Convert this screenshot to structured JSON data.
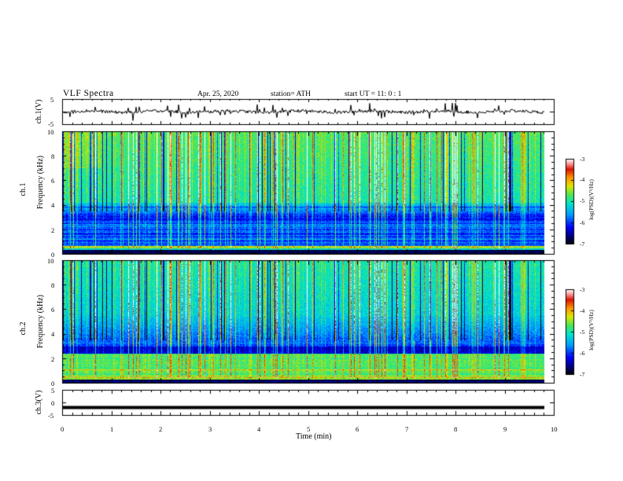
{
  "header": {
    "title": "VLF Spectra",
    "date": "Apr. 25, 2020",
    "station": "station= ATH",
    "start": "start UT =  11: 0 : 1"
  },
  "chart_data": [
    {
      "type": "line",
      "id": "ch1",
      "ylabel": "ch.1(V)",
      "ylim": [
        -5,
        5
      ],
      "yticks": [
        "5",
        "-5"
      ],
      "trace_level": 0,
      "trace_noise": 1.2
    },
    {
      "type": "heatmap",
      "id": "spec1",
      "ylabel_line1": "ch.1",
      "ylabel_line2": "Frequency (kHz)",
      "ylim": [
        0,
        10
      ],
      "yticks": [
        "0",
        "2",
        "4",
        "6",
        "8",
        "10"
      ],
      "colorbar_label": "log(PSD)(V²/Hz)",
      "colorbar_ticks": [
        "-3",
        "-4",
        "-5",
        "-6",
        "-7"
      ],
      "colorbar_range": [
        -7,
        -3
      ]
    },
    {
      "type": "heatmap",
      "id": "spec2",
      "ylabel_line1": "ch.2",
      "ylabel_line2": "Frequency (kHz)",
      "ylim": [
        0,
        10
      ],
      "yticks": [
        "0",
        "2",
        "4",
        "6",
        "8",
        "10"
      ],
      "colorbar_label": "log(PSD)(V²/Hz)",
      "colorbar_ticks": [
        "-3",
        "-4",
        "-5",
        "-6",
        "-7"
      ],
      "colorbar_range": [
        -7,
        -3
      ]
    },
    {
      "type": "line",
      "id": "ch3",
      "ylabel": "ch.3(V)",
      "ylim": [
        -5,
        5
      ],
      "yticks": [
        "5",
        "0",
        "-5"
      ],
      "trace_level": -2,
      "trace_noise": 0.05,
      "xlabel": "Time (min)",
      "xlim": [
        0,
        10
      ],
      "xticks": [
        "0",
        "1",
        "2",
        "3",
        "4",
        "5",
        "6",
        "7",
        "8",
        "9",
        "10"
      ]
    }
  ],
  "colors": {
    "trace": "#000000",
    "axes": "#000000"
  }
}
